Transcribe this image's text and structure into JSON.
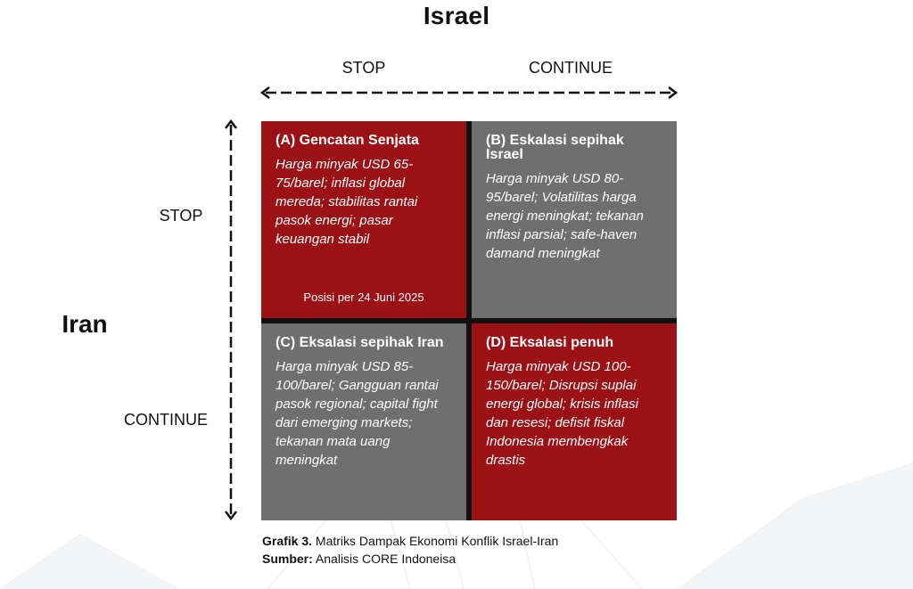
{
  "diagram": {
    "top_axis_title": "Israel",
    "side_axis_title": "Iran",
    "columns": [
      "STOP",
      "CONTINUE"
    ],
    "rows": [
      "STOP",
      "CONTINUE"
    ],
    "cells": [
      {
        "title": "(A) Gencatan Senjata",
        "body": "Harga minyak USD 65-75/barel; inflasi global mereda; stabilitas rantai pasok energi; pasar keuangan stabil",
        "note": "Posisi per 24 Juni 2025",
        "color": "#9b1115"
      },
      {
        "title": "(B) Eskalasi sepihak Israel",
        "body": "Harga minyak USD 80-95/barel; Volatilitas harga energi meningkat; tekanan inflasi parsial; safe-haven damand meningkat",
        "color": "#6f6f6f"
      },
      {
        "title": "(C) Eksalasi sepihak Iran",
        "body": "Harga minyak USD 85-100/barel; Gangguan rantai pasok regional; capital fight dari emerging markets; tekanan mata uang meningkat",
        "color": "#6f6f6f"
      },
      {
        "title": "(D) Eksalasi penuh",
        "body": "Harga minyak USD 100-150/barel; Disrupsi suplai energi global; krisis inflasi dan resesi; defisit fiskal Indonesia membengkak drastis",
        "color": "#9b1115"
      }
    ]
  },
  "caption": {
    "line1_bold": "Grafik 3.",
    "line1_text": "Matriks Dampak Ekonomi Konflik Israel-Iran",
    "line2_bold": "Sumber:",
    "line2_text": "Analisis CORE Indoneisa"
  }
}
